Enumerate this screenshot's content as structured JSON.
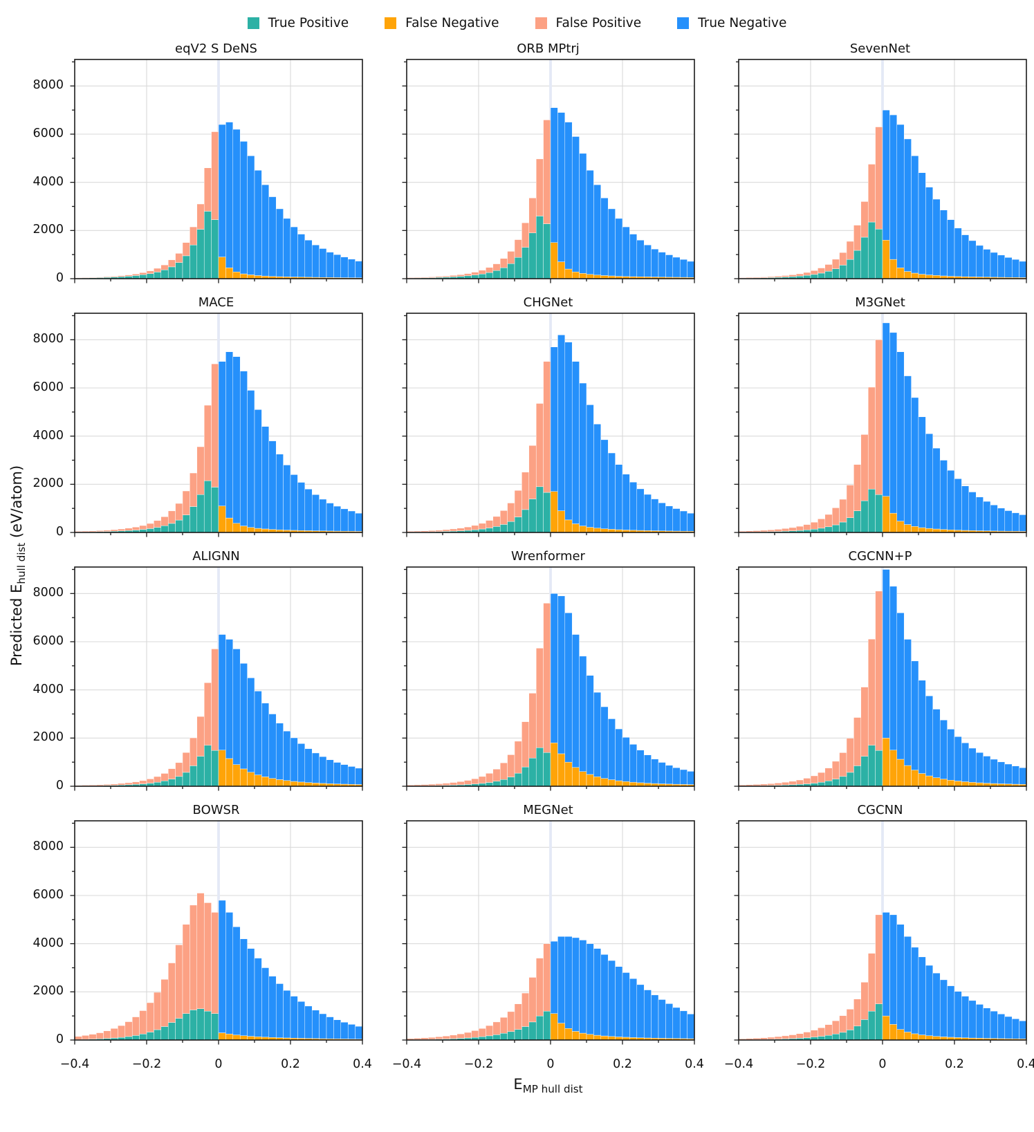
{
  "legend": {
    "items": [
      {
        "label": "True Positive",
        "color": "#2cb1a5"
      },
      {
        "label": "False Negative",
        "color": "#ffa408"
      },
      {
        "label": "False Positive",
        "color": "#fca184"
      },
      {
        "label": "True Negative",
        "color": "#2590fb"
      }
    ]
  },
  "axis": {
    "y_prefix": "Predicted E",
    "y_sub": "hull dist",
    "y_suffix": " (eV/atom)",
    "x_prefix": "E",
    "x_sub": "MP hull dist"
  },
  "chart_data": {
    "type": "bar",
    "subtype": "stacked-histogram-grid",
    "grid": true,
    "legend_position": "top",
    "xlim": [
      -0.4,
      0.4
    ],
    "ylim": [
      0,
      9100
    ],
    "bin_width": 0.02,
    "x_ticks": [
      -0.4,
      -0.2,
      0,
      0.2,
      0.4
    ],
    "x_tick_labels": [
      "−0.4",
      "−0.2",
      "0",
      "0.2",
      "0.4"
    ],
    "x_minor_ticks": [
      -0.3,
      -0.1,
      0.1,
      0.3
    ],
    "y_ticks": [
      0,
      2000,
      4000,
      6000,
      8000
    ],
    "y_tick_labels": [
      "0",
      "2000",
      "4000",
      "6000",
      "8000"
    ],
    "y_minor_ticks": [
      1000,
      3000,
      5000,
      7000,
      9000
    ],
    "zero_line_color": "#e4e9f6",
    "grid_color": "#d9d9d9",
    "series_colors": {
      "true_positive": "#2cb1a5",
      "false_negative": "#ffa408",
      "false_positive": "#fca184",
      "true_negative": "#2590fb"
    },
    "x_centers": [
      -0.39,
      -0.37,
      -0.35,
      -0.33,
      -0.31,
      -0.29,
      -0.27,
      -0.25,
      -0.23,
      -0.21,
      -0.19,
      -0.17,
      -0.15,
      -0.13,
      -0.11,
      -0.09,
      -0.07,
      -0.05,
      -0.03,
      -0.01,
      0.01,
      0.03,
      0.05,
      0.07,
      0.09,
      0.11,
      0.13,
      0.15,
      0.17,
      0.19,
      0.21,
      0.23,
      0.25,
      0.27,
      0.29,
      0.31,
      0.33,
      0.35,
      0.37,
      0.39
    ],
    "models": [
      {
        "name": "eqV2 S DeNS",
        "tp_left": [
          25,
          30,
          36,
          44,
          54,
          66,
          82,
          102,
          130,
          165,
          210,
          275,
          365,
          490,
          670,
          950,
          1400,
          2050,
          2800,
          2450
        ],
        "fp_left": [
          15,
          18,
          20,
          24,
          28,
          34,
          43,
          53,
          65,
          85,
          115,
          155,
          205,
          290,
          380,
          550,
          750,
          1050,
          1800,
          3650
        ],
        "fn_right": [
          900,
          450,
          280,
          200,
          160,
          130,
          110,
          95,
          85,
          75,
          70,
          65,
          60,
          55,
          50,
          48,
          45,
          42,
          40,
          38
        ],
        "tn_right": [
          5500,
          6050,
          5920,
          5500,
          4940,
          4370,
          3790,
          3305,
          2815,
          2425,
          2080,
          1785,
          1540,
          1345,
          1200,
          1052,
          955,
          858,
          770,
          692
        ]
      },
      {
        "name": "ORB MPtrj",
        "tp_left": [
          23,
          28,
          33,
          41,
          50,
          61,
          76,
          95,
          120,
          155,
          195,
          255,
          340,
          455,
          625,
          885,
          1300,
          1900,
          2600,
          2280
        ],
        "fp_left": [
          20,
          24,
          27,
          32,
          39,
          47,
          59,
          72,
          91,
          115,
          155,
          210,
          275,
          385,
          510,
          735,
          1020,
          1450,
          2370,
          4310
        ],
        "fn_right": [
          1500,
          700,
          400,
          280,
          220,
          180,
          150,
          130,
          115,
          100,
          90,
          85,
          80,
          75,
          70,
          65,
          60,
          58,
          55,
          52
        ],
        "tn_right": [
          5600,
          6200,
          6100,
          5620,
          4980,
          4320,
          3750,
          3220,
          2785,
          2400,
          2060,
          1765,
          1520,
          1325,
          1160,
          1035,
          930,
          832,
          745,
          668
        ]
      },
      {
        "name": "SevenNet",
        "tp_left": [
          21,
          25,
          30,
          37,
          45,
          55,
          69,
          86,
          110,
          140,
          176,
          231,
          307,
          412,
          563,
          800,
          1176,
          1722,
          2352,
          2058
        ],
        "fp_left": [
          20,
          25,
          28,
          33,
          40,
          48,
          60,
          74,
          91,
          118,
          160,
          213,
          282,
          394,
          522,
          750,
          1045,
          1480,
          2400,
          4242
        ],
        "fn_right": [
          1600,
          800,
          450,
          300,
          230,
          185,
          155,
          135,
          115,
          100,
          90,
          82,
          75,
          70,
          65,
          60,
          56,
          52,
          49,
          46
        ],
        "tn_right": [
          5400,
          6000,
          5950,
          5500,
          4870,
          4215,
          3645,
          3165,
          2735,
          2350,
          2010,
          1738,
          1505,
          1310,
          1155,
          1030,
          924,
          828,
          751,
          674
        ]
      },
      {
        "name": "MACE",
        "tp_left": [
          19,
          23,
          28,
          34,
          41,
          51,
          63,
          78,
          100,
          127,
          161,
          211,
          280,
          376,
          514,
          729,
          1075,
          1574,
          2150,
          1881
        ],
        "fp_left": [
          27,
          32,
          36,
          44,
          53,
          64,
          80,
          100,
          124,
          160,
          212,
          283,
          374,
          519,
          691,
          993,
          1393,
          1985,
          3131,
          5119
        ],
        "fn_right": [
          1100,
          600,
          380,
          270,
          210,
          170,
          145,
          125,
          110,
          98,
          88,
          80,
          74,
          68,
          63,
          59,
          55,
          52,
          49,
          46
        ],
        "tn_right": [
          6000,
          6900,
          6920,
          6430,
          5690,
          4930,
          4255,
          3675,
          3140,
          2702,
          2312,
          2000,
          1726,
          1502,
          1317,
          1161,
          1035,
          928,
          841,
          754
        ]
      },
      {
        "name": "CHGNet",
        "tp_left": [
          17,
          20,
          24,
          30,
          37,
          45,
          56,
          69,
          88,
          112,
          143,
          187,
          248,
          333,
          455,
          645,
          950,
          1392,
          1900,
          1663
        ],
        "fp_left": [
          30,
          36,
          41,
          49,
          58,
          71,
          90,
          111,
          139,
          179,
          235,
          313,
          415,
          575,
          767,
          1101,
          1553,
          2217,
          3455,
          5437
        ],
        "fn_right": [
          1700,
          900,
          520,
          360,
          270,
          215,
          180,
          152,
          132,
          115,
          102,
          92,
          84,
          77,
          71,
          65,
          60,
          56,
          52,
          49
        ],
        "tn_right": [
          6000,
          7300,
          7380,
          6740,
          5930,
          5085,
          4320,
          3698,
          3168,
          2705,
          2318,
          1998,
          1726,
          1503,
          1319,
          1165,
          1040,
          934,
          838,
          751
        ]
      },
      {
        "name": "M3GNet",
        "tp_left": [
          16,
          19,
          23,
          28,
          35,
          42,
          53,
          66,
          84,
          106,
          135,
          177,
          235,
          315,
          431,
          611,
          900,
          1318,
          1800,
          1575
        ],
        "fp_left": [
          36,
          44,
          50,
          61,
          73,
          89,
          111,
          137,
          172,
          222,
          291,
          387,
          512,
          708,
          946,
          1356,
          1919,
          2747,
          4231,
          6425
        ],
        "fn_right": [
          1500,
          800,
          470,
          330,
          250,
          200,
          168,
          143,
          124,
          108,
          96,
          86,
          78,
          71,
          65,
          60,
          56,
          52,
          49,
          46
        ],
        "tn_right": [
          7200,
          7500,
          7030,
          6170,
          5350,
          4600,
          3932,
          3357,
          2876,
          2472,
          2134,
          1844,
          1602,
          1399,
          1225,
          1080,
          954,
          853,
          766,
          689
        ]
      },
      {
        "name": "ALIGNN",
        "tp_left": [
          15,
          18,
          22,
          27,
          33,
          40,
          50,
          62,
          79,
          100,
          128,
          167,
          222,
          298,
          407,
          577,
          850,
          1245,
          1700,
          1488
        ],
        "fp_left": [
          22,
          27,
          30,
          37,
          44,
          53,
          67,
          83,
          103,
          134,
          176,
          235,
          310,
          431,
          574,
          824,
          1159,
          1651,
          2597,
          4212
        ],
        "fn_right": [
          1500,
          1150,
          900,
          720,
          580,
          470,
          390,
          325,
          275,
          235,
          200,
          175,
          152,
          134,
          119,
          106,
          95,
          86,
          78,
          72
        ],
        "tn_right": [
          4800,
          4950,
          4800,
          4380,
          3920,
          3480,
          3060,
          2675,
          2345,
          2055,
          1810,
          1595,
          1408,
          1246,
          1111,
          994,
          895,
          814,
          742,
          678
        ]
      },
      {
        "name": "Wrenformer",
        "tp_left": [
          14,
          17,
          21,
          25,
          31,
          38,
          47,
          58,
          74,
          94,
          120,
          157,
          208,
          280,
          383,
          543,
          800,
          1171,
          1600,
          1400
        ],
        "fp_left": [
          36,
          43,
          49,
          60,
          71,
          87,
          109,
          135,
          169,
          218,
          285,
          379,
          502,
          692,
          925,
          1326,
          1879,
          2692,
          4132,
          6200
        ],
        "fn_right": [
          1800,
          1350,
          1000,
          780,
          610,
          490,
          395,
          325,
          270,
          228,
          194,
          167,
          145,
          127,
          112,
          100,
          90,
          82,
          75,
          69
        ],
        "tn_right": [
          6200,
          6550,
          6200,
          5520,
          4790,
          4110,
          3505,
          2975,
          2530,
          2152,
          1836,
          1573,
          1355,
          1173,
          1018,
          890,
          780,
          688,
          615,
          551
        ]
      },
      {
        "name": "CGCNN+P",
        "tp_left": [
          15,
          18,
          22,
          27,
          33,
          40,
          50,
          62,
          79,
          100,
          128,
          167,
          222,
          298,
          407,
          577,
          850,
          1245,
          1700,
          1488
        ],
        "fp_left": [
          38,
          46,
          52,
          63,
          76,
          93,
          116,
          144,
          180,
          232,
          304,
          404,
          535,
          738,
          987,
          1415,
          2005,
          2872,
          4409,
          6612
        ],
        "fn_right": [
          2000,
          1500,
          1120,
          860,
          670,
          530,
          430,
          355,
          297,
          252,
          216,
          187,
          163,
          143,
          127,
          113,
          102,
          92,
          84,
          77
        ],
        "tn_right": [
          7000,
          6800,
          6080,
          5240,
          4530,
          3870,
          3320,
          2845,
          2453,
          2118,
          1844,
          1613,
          1417,
          1257,
          1123,
          1007,
          908,
          828,
          756,
          693
        ]
      },
      {
        "name": "BOWSR",
        "tp_left": [
          20,
          28,
          38,
          50,
          65,
          85,
          110,
          145,
          190,
          250,
          330,
          430,
          560,
          730,
          900,
          1100,
          1250,
          1300,
          1200,
          1100
        ],
        "fp_left": [
          130,
          162,
          202,
          250,
          315,
          395,
          490,
          615,
          770,
          970,
          1220,
          1550,
          1960,
          2470,
          3050,
          3700,
          4350,
          4800,
          4500,
          4200
        ],
        "fn_right": [
          300,
          250,
          210,
          180,
          155,
          135,
          120,
          107,
          96,
          87,
          79,
          72,
          66,
          61,
          56,
          52,
          48,
          45,
          42,
          39
        ],
        "tn_right": [
          5500,
          5050,
          4490,
          4020,
          3645,
          3265,
          2880,
          2543,
          2244,
          1973,
          1741,
          1528,
          1344,
          1179,
          1034,
          908,
          792,
          695,
          608,
          531
        ]
      },
      {
        "name": "MEGNet",
        "tp_left": [
          15,
          18,
          22,
          28,
          35,
          44,
          55,
          70,
          88,
          110,
          140,
          175,
          220,
          280,
          350,
          440,
          560,
          750,
          1000,
          1200
        ],
        "fp_left": [
          45,
          57,
          68,
          82,
          100,
          121,
          150,
          185,
          227,
          280,
          340,
          425,
          530,
          660,
          830,
          1060,
          1390,
          1850,
          2400,
          2800
        ],
        "fn_right": [
          1100,
          700,
          480,
          360,
          285,
          235,
          198,
          170,
          148,
          130,
          116,
          104,
          94,
          86,
          79,
          73,
          68,
          63,
          59,
          55
        ],
        "tn_right": [
          3000,
          3600,
          3820,
          3890,
          3865,
          3765,
          3602,
          3380,
          3152,
          2920,
          2684,
          2446,
          2206,
          1994,
          1791,
          1607,
          1442,
          1287,
          1151,
          1025
        ]
      },
      {
        "name": "CGCNN",
        "tp_left": [
          12,
          15,
          19,
          24,
          30,
          38,
          48,
          60,
          76,
          96,
          122,
          155,
          196,
          250,
          320,
          420,
          580,
          850,
          1200,
          1500
        ],
        "fp_left": [
          38,
          47,
          57,
          70,
          85,
          104,
          127,
          155,
          189,
          234,
          288,
          355,
          444,
          550,
          690,
          860,
          1120,
          1550,
          2400,
          3700
        ],
        "fn_right": [
          1000,
          650,
          440,
          330,
          260,
          212,
          178,
          152,
          132,
          116,
          103,
          92,
          83,
          76,
          69,
          64,
          59,
          55,
          51,
          48
        ],
        "tn_right": [
          4300,
          4550,
          4360,
          3970,
          3590,
          3238,
          2922,
          2628,
          2368,
          2134,
          1917,
          1728,
          1557,
          1404,
          1261,
          1136,
          1021,
          920,
          829,
          747
        ]
      }
    ]
  }
}
